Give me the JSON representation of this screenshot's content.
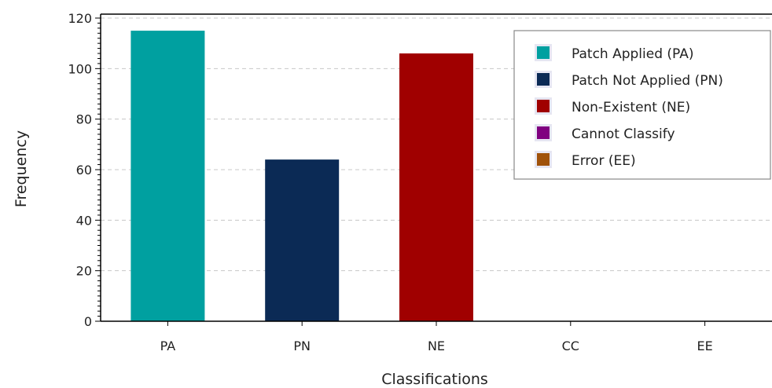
{
  "chart_data": {
    "type": "bar",
    "categories": [
      "PA",
      "PN",
      "NE",
      "CC",
      "EE"
    ],
    "values": [
      115,
      64,
      106,
      0,
      0
    ],
    "colors": [
      "#00a0a0",
      "#0b2a55",
      "#a00000",
      "#800080",
      "#a0520a"
    ],
    "xlabel": "Classifications",
    "ylabel": "Frequency",
    "ylim": [
      0,
      120
    ],
    "yticks": [
      0,
      20,
      40,
      60,
      80,
      100,
      120
    ],
    "grid": "horizontal-dashed",
    "legend": {
      "placement": "top-right",
      "entries": [
        {
          "label": "Patch Applied (PA)",
          "color": "#00a0a0"
        },
        {
          "label": "Patch Not Applied (PN)",
          "color": "#0b2a55"
        },
        {
          "label": "Non-Existent (NE)",
          "color": "#a00000"
        },
        {
          "label": "Cannot Classify",
          "color": "#800080"
        },
        {
          "label": "Error (EE)",
          "color": "#a0520a"
        }
      ]
    }
  }
}
